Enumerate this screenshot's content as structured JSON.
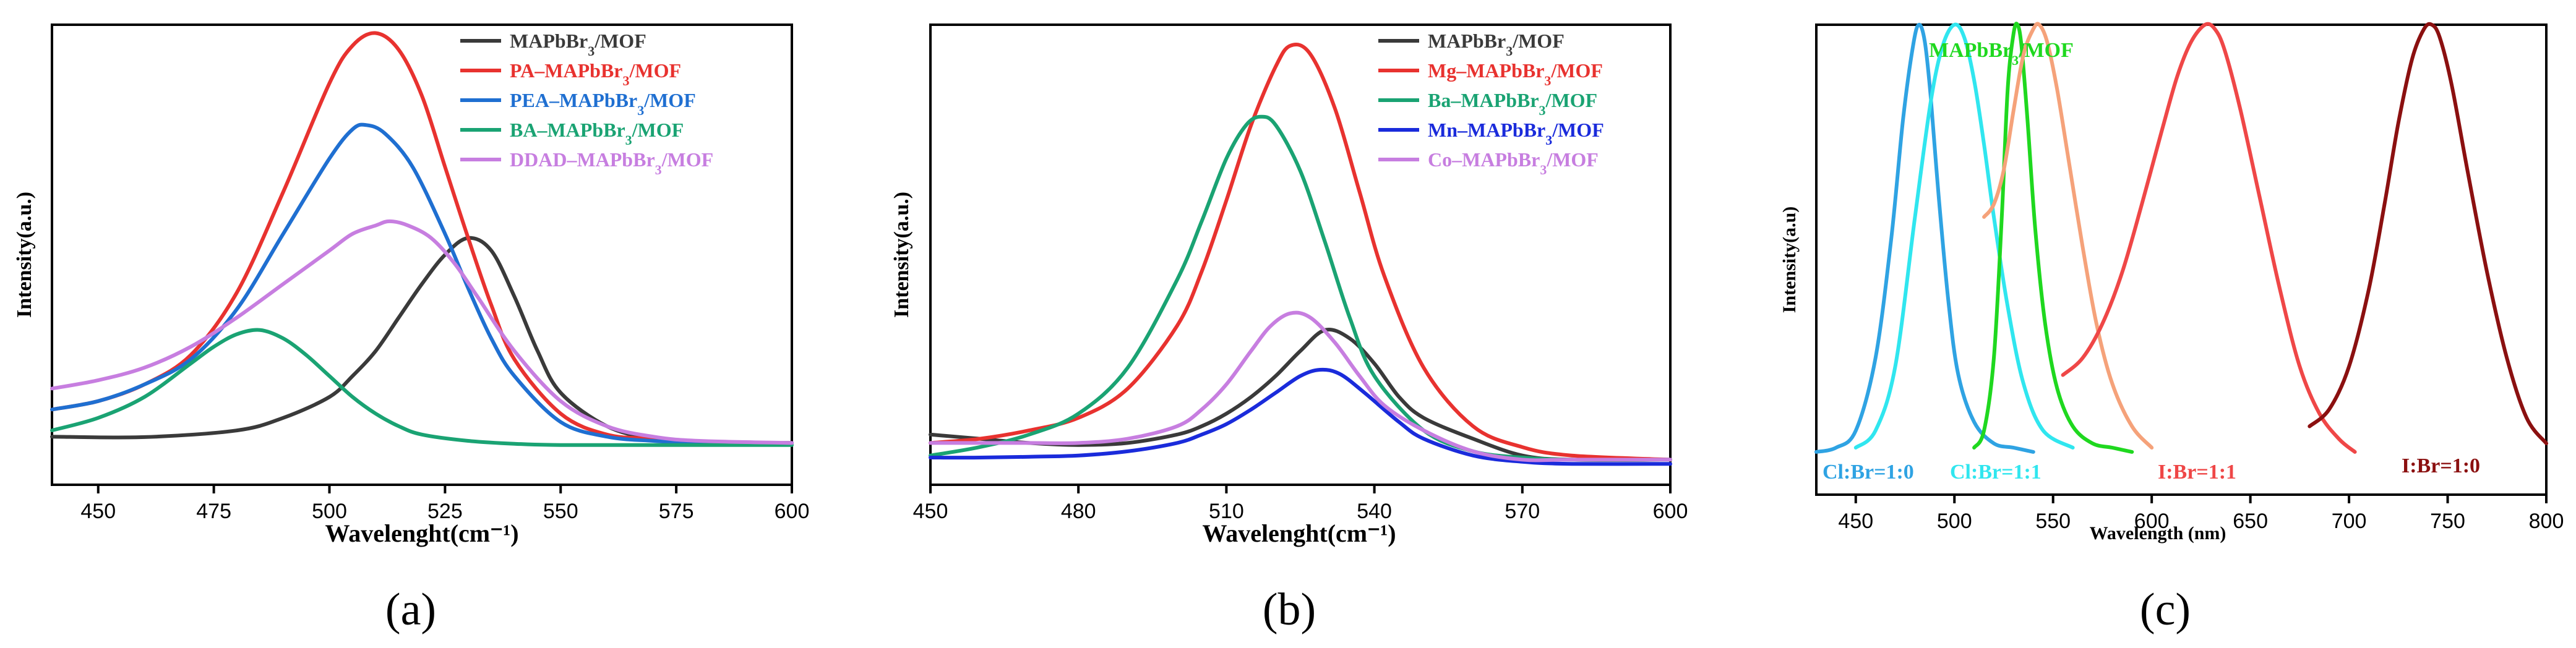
{
  "chart_data": [
    {
      "type": "line",
      "panel_label": "(a)",
      "xlabel": "Wavelenght(cm⁻¹)",
      "ylabel": "Intensity(a.u.)",
      "xlim": [
        440,
        600
      ],
      "ylim": [
        -0.1,
        1.0
      ],
      "xticks": [
        450,
        475,
        500,
        525,
        550,
        575,
        600
      ],
      "legend_position": "top-right",
      "series": [
        {
          "name": "MAPbBr₃/MOF",
          "label_main": "MAPbBr",
          "label_sub": "3",
          "label_rest": "/MOF",
          "color": "#3a3a3a",
          "x": [
            440,
            460,
            480,
            490,
            500,
            505,
            510,
            515,
            520,
            525,
            530,
            535,
            540,
            545,
            550,
            560,
            570,
            580,
            600
          ],
          "y": [
            0.015,
            0.014,
            0.03,
            0.06,
            0.11,
            0.16,
            0.22,
            0.3,
            0.38,
            0.45,
            0.49,
            0.46,
            0.35,
            0.22,
            0.12,
            0.04,
            0.01,
            0.0,
            0.0
          ]
        },
        {
          "name": "PA–MAPbBr₃/MOF",
          "label_main": "PA–MAPbBr",
          "label_sub": "3",
          "label_rest": "/MOF",
          "color": "#e8322f",
          "x": [
            440,
            450,
            460,
            470,
            480,
            490,
            500,
            505,
            510,
            515,
            520,
            525,
            530,
            535,
            540,
            550,
            560,
            570,
            580,
            600
          ],
          "y": [
            0.08,
            0.1,
            0.14,
            0.21,
            0.36,
            0.6,
            0.86,
            0.95,
            0.98,
            0.94,
            0.83,
            0.66,
            0.49,
            0.33,
            0.2,
            0.07,
            0.02,
            0.01,
            0.0,
            0.0
          ]
        },
        {
          "name": "PEA–MAPbBr₃/MOF",
          "label_main": "PEA–MAPbBr",
          "label_sub": "3",
          "label_rest": "/MOF",
          "color": "#1f6fd1",
          "x": [
            440,
            450,
            460,
            470,
            480,
            490,
            500,
            505,
            508,
            512,
            518,
            525,
            530,
            535,
            540,
            550,
            560,
            570,
            580,
            600
          ],
          "y": [
            0.08,
            0.1,
            0.14,
            0.2,
            0.32,
            0.5,
            0.68,
            0.75,
            0.76,
            0.74,
            0.66,
            0.5,
            0.37,
            0.25,
            0.16,
            0.05,
            0.015,
            0.005,
            0.0,
            0.0
          ]
        },
        {
          "name": "BA–MAPbBr₃/MOF",
          "label_main": "BA–MAPbBr",
          "label_sub": "3",
          "label_rest": "/MOF",
          "color": "#1aa373",
          "x": [
            440,
            450,
            460,
            470,
            475,
            480,
            485,
            490,
            495,
            500,
            505,
            510,
            515,
            520,
            530,
            540,
            550,
            575,
            600
          ],
          "y": [
            0.03,
            0.06,
            0.11,
            0.19,
            0.23,
            0.26,
            0.27,
            0.25,
            0.21,
            0.16,
            0.11,
            0.07,
            0.04,
            0.02,
            0.005,
            -0.002,
            -0.005,
            -0.005,
            -0.005
          ]
        },
        {
          "name": "DDAD–MAPbBr₃/MOF",
          "label_main": "DDAD–MAPbBr",
          "label_sub": "3",
          "label_rest": "/MOF",
          "color": "#c77ee0",
          "x": [
            440,
            450,
            460,
            470,
            480,
            490,
            500,
            505,
            510,
            513,
            517,
            522,
            527,
            532,
            540,
            550,
            560,
            570,
            580,
            600
          ],
          "y": [
            0.13,
            0.15,
            0.18,
            0.23,
            0.3,
            0.38,
            0.46,
            0.5,
            0.52,
            0.53,
            0.52,
            0.49,
            0.43,
            0.35,
            0.22,
            0.1,
            0.04,
            0.015,
            0.005,
            0.0
          ]
        }
      ]
    },
    {
      "type": "line",
      "panel_label": "(b)",
      "xlabel": "Wavelenght(cm⁻¹)",
      "ylabel": "Intensity(a.u.)",
      "xlim": [
        450,
        600
      ],
      "ylim": [
        -0.1,
        1.0
      ],
      "xticks": [
        450,
        480,
        510,
        540,
        570,
        600
      ],
      "legend_position": "top-right",
      "series": [
        {
          "name": "MAPbBr₃/MOF",
          "label_main": "MAPbBr",
          "label_sub": "3",
          "label_rest": "/MOF",
          "color": "#3a3a3a",
          "x": [
            450,
            460,
            470,
            480,
            490,
            500,
            505,
            510,
            515,
            520,
            525,
            530,
            535,
            540,
            545,
            550,
            560,
            570,
            580,
            600
          ],
          "y": [
            0.02,
            0.01,
            0.0,
            -0.005,
            0.0,
            0.02,
            0.04,
            0.07,
            0.11,
            0.16,
            0.22,
            0.27,
            0.25,
            0.19,
            0.11,
            0.06,
            0.01,
            -0.03,
            -0.04,
            -0.04
          ]
        },
        {
          "name": "Mg–MAPbBr₃/MOF",
          "label_main": "Mg–MAPbBr",
          "label_sub": "3",
          "label_rest": "/MOF",
          "color": "#e8322f",
          "x": [
            450,
            460,
            470,
            480,
            490,
            500,
            505,
            510,
            515,
            520,
            523,
            527,
            532,
            537,
            542,
            550,
            560,
            570,
            580,
            600
          ],
          "y": [
            0.0,
            0.01,
            0.03,
            0.06,
            0.13,
            0.28,
            0.41,
            0.58,
            0.76,
            0.9,
            0.95,
            0.93,
            0.8,
            0.6,
            0.4,
            0.18,
            0.04,
            -0.01,
            -0.03,
            -0.04
          ]
        },
        {
          "name": "Ba–MAPbBr₃/MOF",
          "label_main": "Ba–MAPbBr",
          "label_sub": "3",
          "label_rest": "/MOF",
          "color": "#1aa373",
          "x": [
            450,
            460,
            470,
            480,
            490,
            500,
            505,
            510,
            514,
            517,
            520,
            525,
            530,
            535,
            540,
            550,
            560,
            570,
            580,
            600
          ],
          "y": [
            -0.03,
            -0.01,
            0.02,
            0.07,
            0.18,
            0.39,
            0.53,
            0.68,
            0.76,
            0.78,
            0.76,
            0.65,
            0.48,
            0.3,
            0.16,
            0.03,
            -0.02,
            -0.035,
            -0.04,
            -0.04
          ]
        },
        {
          "name": "Mn–MAPbBr₃/MOF",
          "label_main": "Mn–MAPbBr",
          "label_sub": "3",
          "label_rest": "/MOF",
          "color": "#1a2bdb",
          "x": [
            450,
            460,
            470,
            480,
            490,
            500,
            505,
            510,
            515,
            520,
            525,
            529,
            533,
            538,
            545,
            550,
            560,
            570,
            580,
            600
          ],
          "y": [
            -0.035,
            -0.035,
            -0.033,
            -0.03,
            -0.02,
            0.0,
            0.02,
            0.045,
            0.08,
            0.12,
            0.16,
            0.175,
            0.165,
            0.12,
            0.05,
            0.01,
            -0.03,
            -0.045,
            -0.05,
            -0.05
          ]
        },
        {
          "name": "Co–MAPbBr₃/MOF",
          "label_main": "Co–MAPbBr",
          "label_sub": "3",
          "label_rest": "/MOF",
          "color": "#c77ee0",
          "x": [
            450,
            460,
            470,
            480,
            490,
            500,
            505,
            510,
            515,
            519,
            523,
            527,
            532,
            537,
            542,
            550,
            560,
            570,
            580,
            600
          ],
          "y": [
            0.0,
            0.0,
            0.0,
            0.0,
            0.01,
            0.04,
            0.08,
            0.14,
            0.22,
            0.28,
            0.31,
            0.3,
            0.24,
            0.16,
            0.09,
            0.03,
            -0.02,
            -0.04,
            -0.04,
            -0.04
          ]
        }
      ]
    },
    {
      "type": "line",
      "panel_label": "(c)",
      "xlabel": "Wavelength (nm)",
      "ylabel": "Intensity(a.u)",
      "xlim": [
        430,
        800
      ],
      "ylim": [
        -0.1,
        1.0
      ],
      "xticks": [
        450,
        500,
        550,
        600,
        650,
        700,
        750,
        800
      ],
      "series": [
        {
          "name": "Cl:Br=1:0",
          "color": "#2fa3e3",
          "x": [
            430,
            440,
            450,
            460,
            468,
            474,
            479,
            482,
            485,
            488,
            492,
            497,
            502,
            510,
            520,
            530,
            540
          ],
          "y": [
            0.0,
            0.01,
            0.05,
            0.22,
            0.5,
            0.78,
            0.95,
            1.0,
            0.96,
            0.83,
            0.6,
            0.35,
            0.18,
            0.07,
            0.02,
            0.01,
            0.0
          ]
        },
        {
          "name": "Cl:Br=1:1",
          "color": "#30e6ef",
          "x": [
            450,
            460,
            470,
            480,
            488,
            494,
            500,
            505,
            510,
            515,
            520,
            527,
            535,
            545,
            560
          ],
          "y": [
            0.01,
            0.05,
            0.2,
            0.55,
            0.82,
            0.95,
            1.0,
            0.97,
            0.87,
            0.72,
            0.55,
            0.34,
            0.16,
            0.05,
            0.01
          ]
        },
        {
          "name": "MAPbBr₃/MOF",
          "label_main": "MAPbBr",
          "label_sub": "3",
          "label_rest": "/MOF",
          "color": "#1fd81f",
          "x": [
            510,
            515,
            520,
            524,
            527,
            530,
            532,
            534,
            537,
            541,
            546,
            552,
            560,
            570,
            580,
            590
          ],
          "y": [
            0.01,
            0.05,
            0.22,
            0.55,
            0.85,
            0.98,
            1.0,
            0.95,
            0.78,
            0.52,
            0.3,
            0.15,
            0.06,
            0.02,
            0.01,
            0.0
          ]
        },
        {
          "name": "orange-curve",
          "color": "#f5a27a",
          "x": [
            515,
            520,
            525,
            530,
            535,
            540,
            543,
            547,
            552,
            558,
            565,
            572,
            580,
            590,
            600
          ],
          "y": [
            0.55,
            0.58,
            0.66,
            0.8,
            0.93,
            0.99,
            1.0,
            0.96,
            0.85,
            0.68,
            0.48,
            0.3,
            0.16,
            0.06,
            0.01
          ]
        },
        {
          "name": "I:Br=1:1",
          "color": "#ef4747",
          "x": [
            555,
            565,
            575,
            585,
            595,
            605,
            613,
            620,
            627,
            632,
            637,
            645,
            655,
            665,
            675,
            685,
            695,
            703
          ],
          "y": [
            0.18,
            0.22,
            0.3,
            0.42,
            0.58,
            0.75,
            0.88,
            0.96,
            1.0,
            0.99,
            0.94,
            0.8,
            0.59,
            0.38,
            0.2,
            0.09,
            0.03,
            0.0
          ]
        },
        {
          "name": "I:Br=1:0",
          "color": "#8b1010",
          "x": [
            680,
            690,
            700,
            710,
            718,
            725,
            732,
            738,
            742,
            746,
            752,
            760,
            770,
            780,
            790,
            800
          ],
          "y": [
            0.06,
            0.1,
            0.2,
            0.38,
            0.58,
            0.77,
            0.92,
            0.99,
            1.0,
            0.97,
            0.86,
            0.66,
            0.42,
            0.22,
            0.08,
            0.02
          ]
        }
      ],
      "annotations": [
        {
          "text": "Cl:Br=1:0",
          "color": "#2fa3e3"
        },
        {
          "text": "Cl:Br=1:1",
          "color": "#30e6ef"
        },
        {
          "text": "MAPbBr₃/MOF",
          "main": "MAPbBr",
          "sub": "3",
          "rest": "/MOF",
          "color": "#1fd81f"
        },
        {
          "text": "I:Br=1:1",
          "color": "#ef4747"
        },
        {
          "text": "I:Br=1:0",
          "color": "#8b1010"
        }
      ]
    }
  ]
}
